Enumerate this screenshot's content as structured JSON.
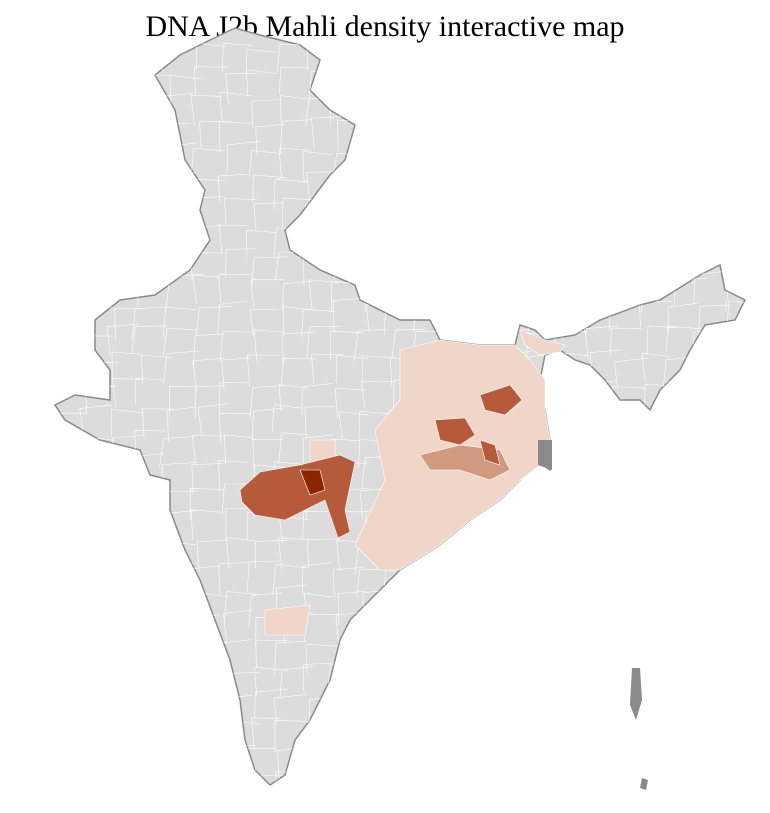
{
  "title": "DNA J2b Mahli density interactive map",
  "colors": {
    "no_data": "#dcdcdc",
    "border": "#8a8a8a",
    "district_line": "#ffffff",
    "low": "#efd6c9",
    "medium": "#d09a80",
    "high": "#b55a3a",
    "highest": "#8b2500"
  }
}
